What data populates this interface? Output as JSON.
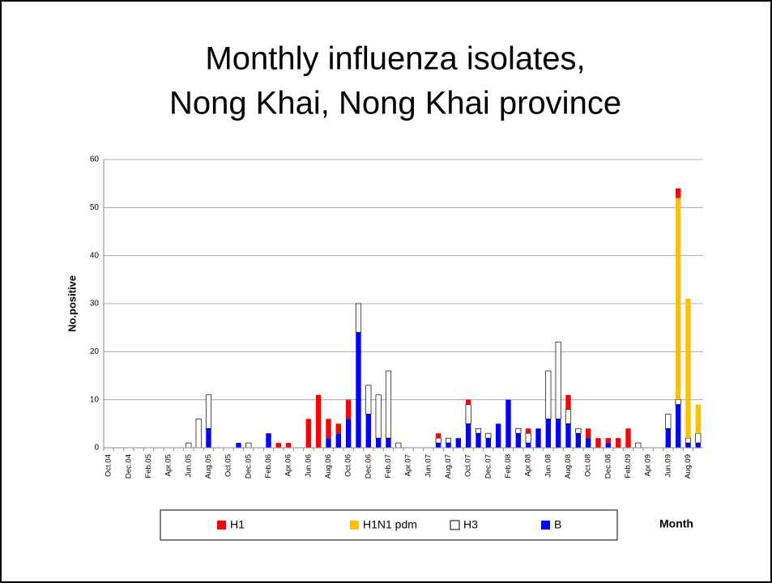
{
  "chart_data": {
    "type": "stacked_bar",
    "title_lines": [
      "Monthly influenza isolates,",
      "Nong Khai, Nong Khai province"
    ],
    "y_label": "No.positive",
    "x_label": "Month",
    "categories": [
      "Oct.04",
      null,
      "Dec.04",
      null,
      "Feb.05",
      null,
      "Apr.05",
      null,
      "Jun.05",
      null,
      "Aug.05",
      null,
      "Oct.05",
      null,
      "Dec.05",
      null,
      "Feb.06",
      null,
      "Apr.06",
      null,
      "Jun.06",
      null,
      "Aug.06",
      null,
      "Oct.06",
      null,
      "Dec.06",
      null,
      "Feb.07",
      null,
      "Apr.07",
      null,
      "Jun.07",
      null,
      "Aug.07",
      null,
      "Oct.07",
      null,
      "Dec.07",
      null,
      "Feb.08",
      null,
      "Apr.08",
      null,
      "Jun.08",
      null,
      "Aug.08",
      null,
      "Oct.08",
      null,
      "Dec.08",
      null,
      "Feb.09",
      null,
      "Apr.09",
      null,
      "Jun.09",
      null,
      "Aug.09",
      null
    ],
    "series": [
      {
        "name": "H1",
        "color": "#ff0000",
        "values": [
          0,
          0,
          0,
          0,
          0,
          0,
          0,
          0,
          0,
          0,
          0,
          0,
          0,
          0,
          0,
          0,
          0,
          1,
          1,
          0,
          6,
          11,
          4,
          2,
          4,
          0,
          0,
          0,
          0,
          0,
          0,
          0,
          0,
          1,
          0,
          0,
          1,
          0,
          0,
          0,
          0,
          0,
          1,
          0,
          0,
          0,
          3,
          0,
          2,
          2,
          1,
          2,
          4,
          0,
          0,
          0,
          0,
          2,
          0,
          0
        ]
      },
      {
        "name": "H1N1 pdm",
        "color": "#ffc000",
        "values": [
          0,
          0,
          0,
          0,
          0,
          0,
          0,
          0,
          0,
          0,
          0,
          0,
          0,
          0,
          0,
          0,
          0,
          0,
          0,
          0,
          0,
          0,
          0,
          0,
          0,
          0,
          0,
          0,
          0,
          0,
          0,
          0,
          0,
          0,
          0,
          0,
          0,
          0,
          0,
          0,
          0,
          0,
          0,
          0,
          0,
          0,
          0,
          0,
          0,
          0,
          0,
          0,
          0,
          0,
          0,
          0,
          0,
          42,
          29,
          6
        ]
      },
      {
        "name": "H3",
        "color": "#ffffff",
        "values": [
          0,
          0,
          0,
          0,
          0,
          0,
          0,
          0,
          1,
          6,
          7,
          0,
          0,
          0,
          1,
          0,
          0,
          0,
          0,
          0,
          0,
          0,
          0,
          0,
          0,
          6,
          6,
          9,
          14,
          1,
          0,
          0,
          0,
          1,
          1,
          0,
          4,
          1,
          1,
          0,
          0,
          1,
          2,
          0,
          10,
          16,
          3,
          1,
          0,
          0,
          0,
          0,
          0,
          1,
          0,
          0,
          3,
          1,
          1,
          2
        ]
      },
      {
        "name": "B",
        "color": "#0000ff",
        "values": [
          0,
          0,
          0,
          0,
          0,
          0,
          0,
          0,
          0,
          0,
          4,
          0,
          0,
          1,
          0,
          0,
          3,
          0,
          0,
          0,
          0,
          0,
          2,
          3,
          6,
          24,
          7,
          2,
          2,
          0,
          0,
          0,
          0,
          1,
          1,
          2,
          5,
          3,
          2,
          5,
          10,
          3,
          1,
          4,
          6,
          6,
          5,
          3,
          2,
          0,
          1,
          0,
          0,
          0,
          0,
          0,
          4,
          9,
          1,
          1
        ]
      }
    ],
    "ylim": [
      0,
      60
    ],
    "yticks": [
      0,
      10,
      20,
      30,
      40,
      50,
      60
    ],
    "grid": true
  }
}
